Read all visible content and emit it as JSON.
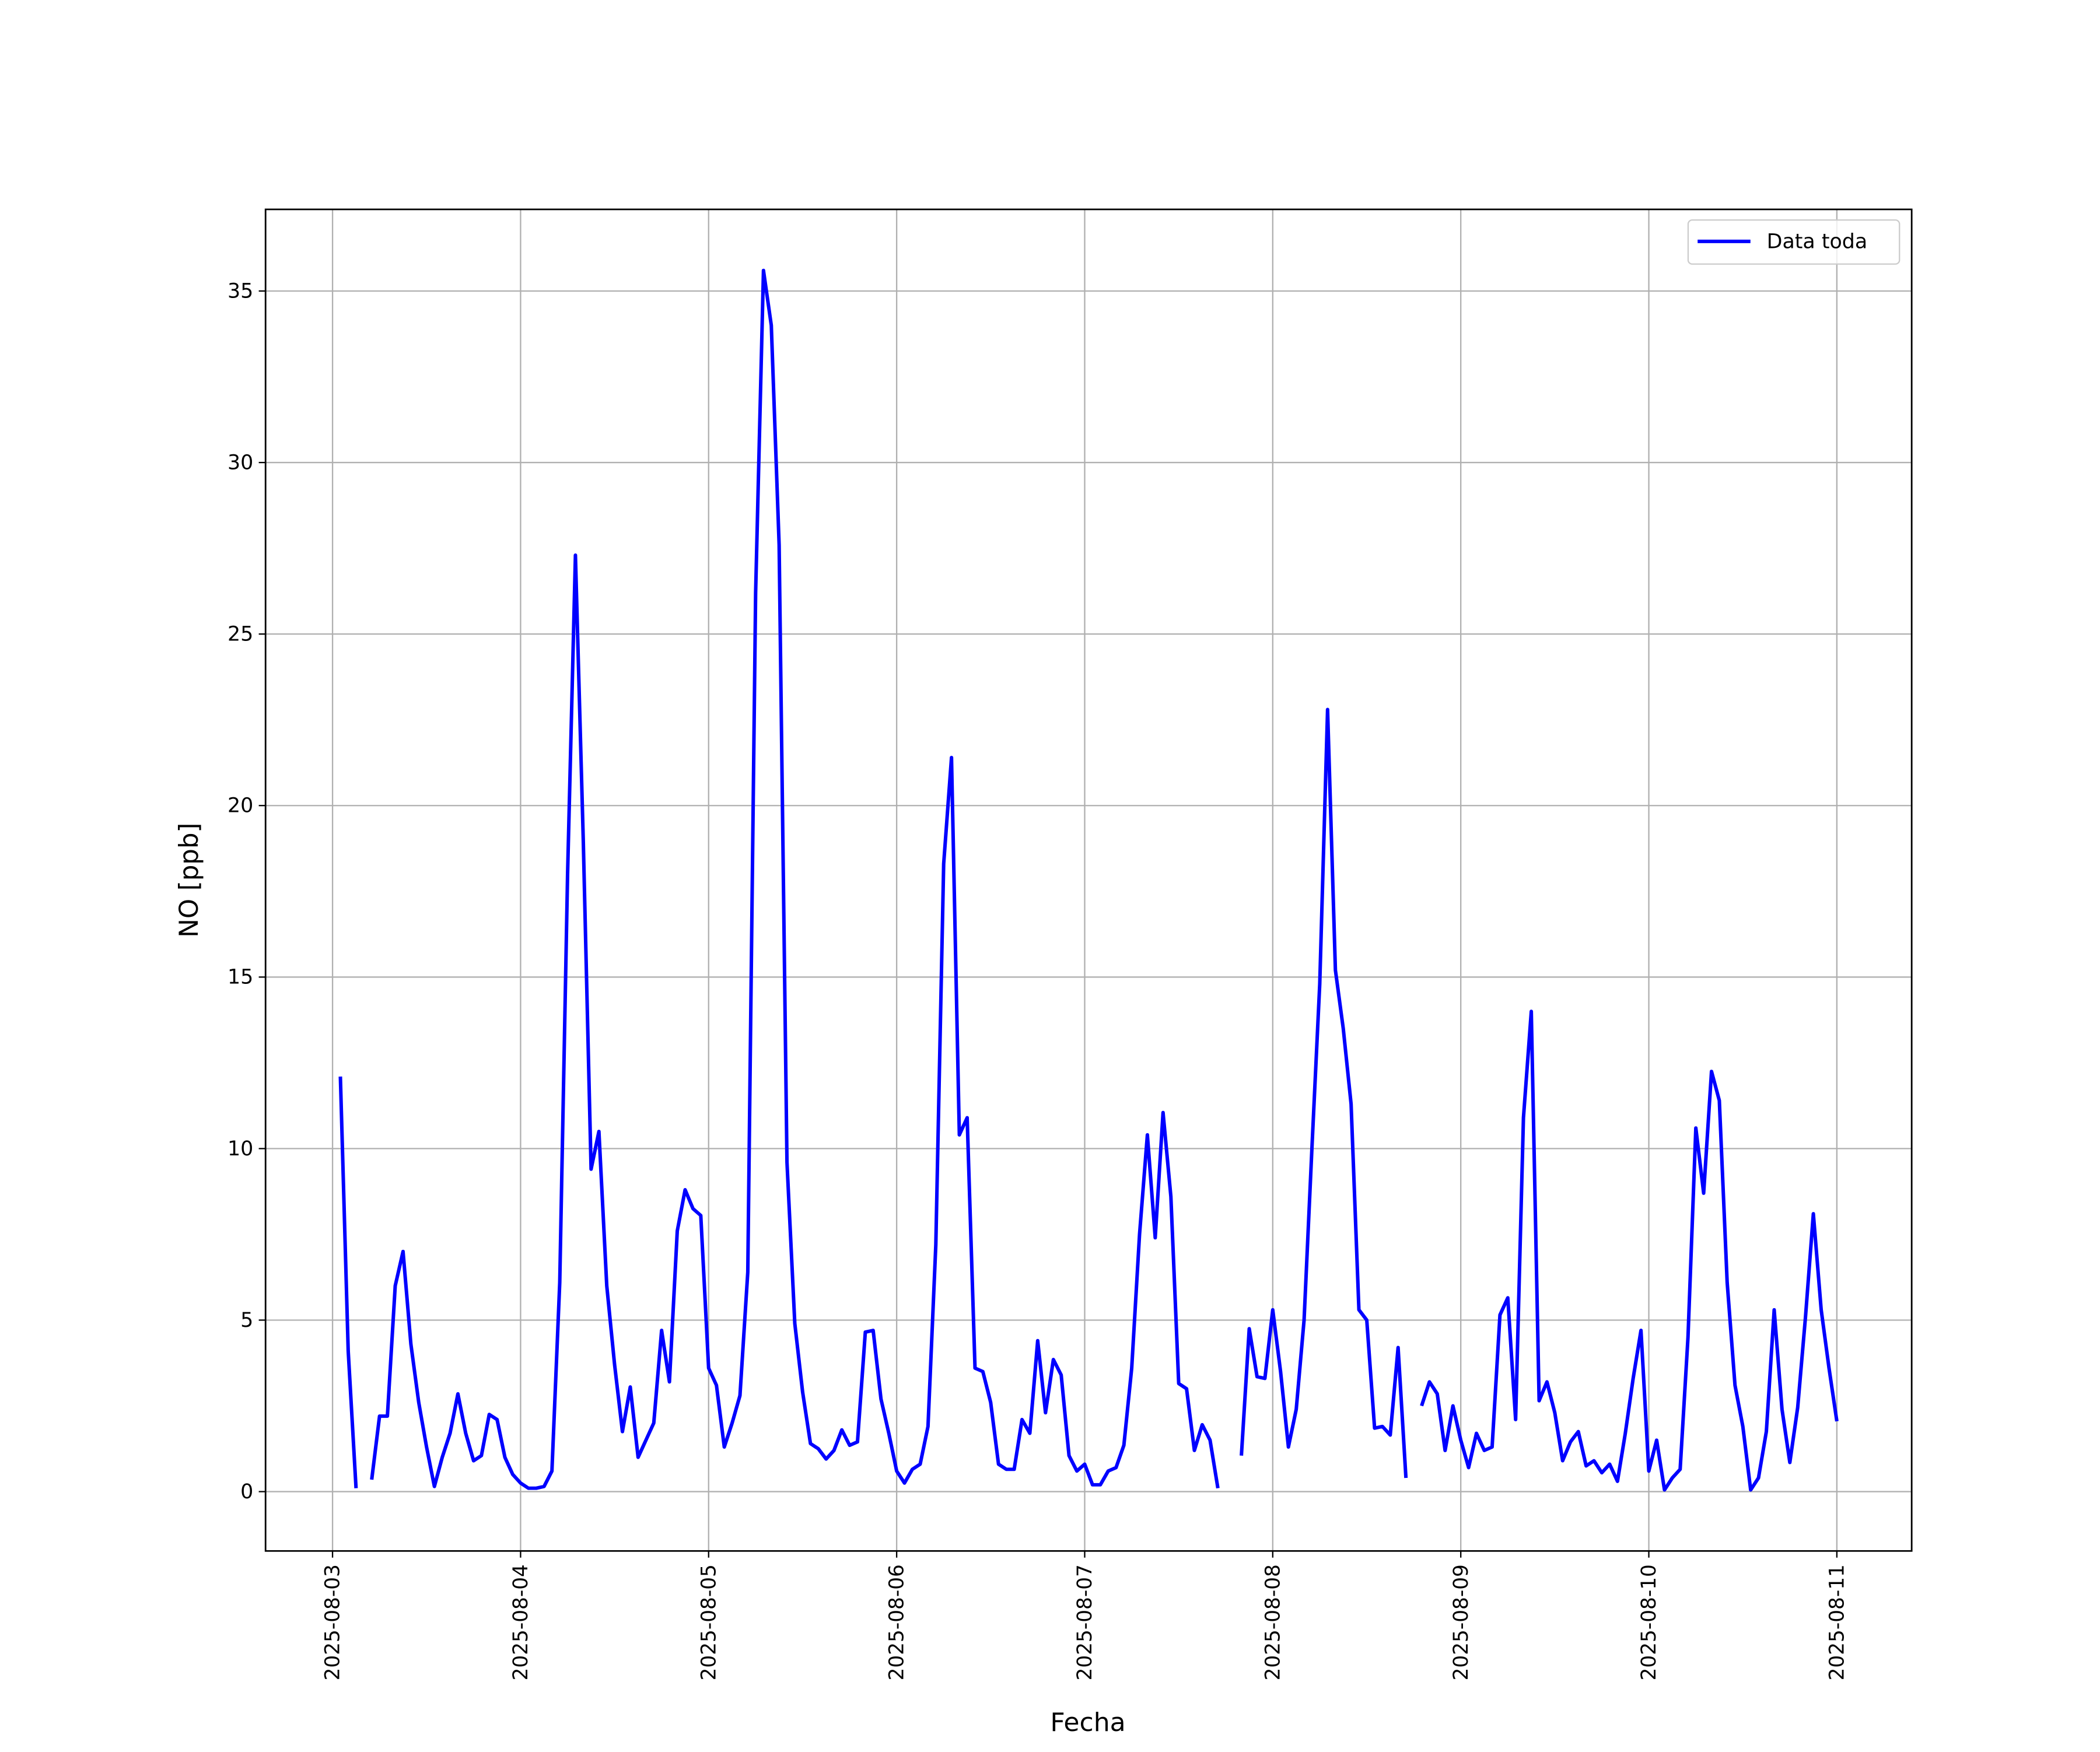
{
  "chart_data": {
    "type": "line",
    "xlabel": "Fecha",
    "ylabel": "NO [ppb]",
    "x": [
      "2025-08-03T01:00",
      "2025-08-03T02:00",
      "2025-08-03T03:00",
      "2025-08-03T04:00",
      "2025-08-03T05:00",
      "2025-08-03T06:00",
      "2025-08-03T07:00",
      "2025-08-03T08:00",
      "2025-08-03T09:00",
      "2025-08-03T10:00",
      "2025-08-03T11:00",
      "2025-08-03T12:00",
      "2025-08-03T13:00",
      "2025-08-03T14:00",
      "2025-08-03T15:00",
      "2025-08-03T16:00",
      "2025-08-03T17:00",
      "2025-08-03T18:00",
      "2025-08-03T19:00",
      "2025-08-03T20:00",
      "2025-08-03T21:00",
      "2025-08-03T22:00",
      "2025-08-03T23:00",
      "2025-08-04T00:00",
      "2025-08-04T01:00",
      "2025-08-04T02:00",
      "2025-08-04T03:00",
      "2025-08-04T04:00",
      "2025-08-04T05:00",
      "2025-08-04T06:00",
      "2025-08-04T07:00",
      "2025-08-04T08:00",
      "2025-08-04T09:00",
      "2025-08-04T10:00",
      "2025-08-04T11:00",
      "2025-08-04T12:00",
      "2025-08-04T13:00",
      "2025-08-04T14:00",
      "2025-08-04T15:00",
      "2025-08-04T16:00",
      "2025-08-04T17:00",
      "2025-08-04T18:00",
      "2025-08-04T19:00",
      "2025-08-04T20:00",
      "2025-08-04T21:00",
      "2025-08-04T22:00",
      "2025-08-04T23:00",
      "2025-08-05T00:00",
      "2025-08-05T01:00",
      "2025-08-05T02:00",
      "2025-08-05T03:00",
      "2025-08-05T04:00",
      "2025-08-05T05:00",
      "2025-08-05T06:00",
      "2025-08-05T07:00",
      "2025-08-05T08:00",
      "2025-08-05T09:00",
      "2025-08-05T10:00",
      "2025-08-05T11:00",
      "2025-08-05T12:00",
      "2025-08-05T13:00",
      "2025-08-05T14:00",
      "2025-08-05T15:00",
      "2025-08-05T16:00",
      "2025-08-05T17:00",
      "2025-08-05T18:00",
      "2025-08-05T19:00",
      "2025-08-05T20:00",
      "2025-08-05T21:00",
      "2025-08-05T22:00",
      "2025-08-05T23:00",
      "2025-08-06T00:00",
      "2025-08-06T01:00",
      "2025-08-06T02:00",
      "2025-08-06T03:00",
      "2025-08-06T04:00",
      "2025-08-06T05:00",
      "2025-08-06T06:00",
      "2025-08-06T07:00",
      "2025-08-06T08:00",
      "2025-08-06T09:00",
      "2025-08-06T10:00",
      "2025-08-06T11:00",
      "2025-08-06T12:00",
      "2025-08-06T13:00",
      "2025-08-06T14:00",
      "2025-08-06T15:00",
      "2025-08-06T16:00",
      "2025-08-06T17:00",
      "2025-08-06T18:00",
      "2025-08-06T19:00",
      "2025-08-06T20:00",
      "2025-08-06T21:00",
      "2025-08-06T22:00",
      "2025-08-06T23:00",
      "2025-08-07T00:00",
      "2025-08-07T01:00",
      "2025-08-07T02:00",
      "2025-08-07T03:00",
      "2025-08-07T04:00",
      "2025-08-07T05:00",
      "2025-08-07T06:00",
      "2025-08-07T07:00",
      "2025-08-07T08:00",
      "2025-08-07T09:00",
      "2025-08-07T10:00",
      "2025-08-07T11:00",
      "2025-08-07T12:00",
      "2025-08-07T13:00",
      "2025-08-07T14:00",
      "2025-08-07T15:00",
      "2025-08-07T16:00",
      "2025-08-07T17:00",
      "2025-08-07T18:00",
      "2025-08-07T19:00",
      "2025-08-07T20:00",
      "2025-08-07T21:00",
      "2025-08-07T22:00",
      "2025-08-07T23:00",
      "2025-08-08T00:00",
      "2025-08-08T01:00",
      "2025-08-08T02:00",
      "2025-08-08T03:00",
      "2025-08-08T04:00",
      "2025-08-08T05:00",
      "2025-08-08T06:00",
      "2025-08-08T07:00",
      "2025-08-08T08:00",
      "2025-08-08T09:00",
      "2025-08-08T10:00",
      "2025-08-08T11:00",
      "2025-08-08T12:00",
      "2025-08-08T13:00",
      "2025-08-08T14:00",
      "2025-08-08T15:00",
      "2025-08-08T16:00",
      "2025-08-08T17:00",
      "2025-08-08T18:00",
      "2025-08-08T19:00",
      "2025-08-08T20:00",
      "2025-08-08T21:00",
      "2025-08-08T22:00",
      "2025-08-08T23:00",
      "2025-08-09T00:00",
      "2025-08-09T01:00",
      "2025-08-09T02:00",
      "2025-08-09T03:00",
      "2025-08-09T04:00",
      "2025-08-09T05:00",
      "2025-08-09T06:00",
      "2025-08-09T07:00",
      "2025-08-09T08:00",
      "2025-08-09T09:00",
      "2025-08-09T10:00",
      "2025-08-09T11:00",
      "2025-08-09T12:00",
      "2025-08-09T13:00",
      "2025-08-09T14:00",
      "2025-08-09T15:00",
      "2025-08-09T16:00",
      "2025-08-09T17:00",
      "2025-08-09T18:00",
      "2025-08-09T19:00",
      "2025-08-09T20:00",
      "2025-08-09T21:00",
      "2025-08-09T22:00",
      "2025-08-09T23:00",
      "2025-08-10T00:00",
      "2025-08-10T01:00",
      "2025-08-10T02:00",
      "2025-08-10T03:00",
      "2025-08-10T04:00",
      "2025-08-10T05:00",
      "2025-08-10T06:00",
      "2025-08-10T07:00",
      "2025-08-10T08:00",
      "2025-08-10T09:00",
      "2025-08-10T10:00",
      "2025-08-10T11:00",
      "2025-08-10T12:00",
      "2025-08-10T13:00",
      "2025-08-10T14:00",
      "2025-08-10T15:00",
      "2025-08-10T16:00",
      "2025-08-10T17:00",
      "2025-08-10T18:00",
      "2025-08-10T19:00",
      "2025-08-10T20:00",
      "2025-08-10T21:00",
      "2025-08-10T22:00",
      "2025-08-10T23:00",
      "2025-08-11T00:00"
    ],
    "series": [
      {
        "name": "Data toda",
        "color": "#0000ff",
        "values": [
          12.1,
          4.1,
          0.1,
          null,
          0.35,
          2.2,
          2.2,
          6.0,
          7.0,
          4.3,
          2.6,
          1.3,
          0.15,
          1.0,
          1.7,
          2.85,
          1.7,
          0.9,
          1.05,
          2.25,
          2.1,
          1.0,
          0.5,
          0.25,
          0.1,
          0.1,
          0.15,
          0.6,
          6.1,
          18,
          27.3,
          19,
          9.4,
          10.5,
          6.0,
          3.7,
          1.75,
          3.05,
          1.0,
          1.5,
          2.0,
          4.7,
          3.2,
          7.6,
          8.8,
          8.25,
          8.05,
          3.6,
          3.1,
          1.3,
          2.0,
          2.8,
          6.4,
          26.2,
          35.6,
          34.0,
          27.6,
          9.6,
          4.9,
          2.9,
          1.4,
          1.25,
          0.95,
          1.2,
          1.8,
          1.35,
          1.45,
          4.65,
          4.7,
          2.7,
          1.7,
          0.6,
          0.25,
          0.65,
          0.8,
          1.9,
          7.2,
          18.3,
          21.4,
          10.4,
          10.9,
          3.6,
          3.5,
          2.6,
          0.8,
          0.65,
          0.65,
          2.1,
          1.7,
          4.4,
          2.3,
          3.85,
          3.4,
          1.05,
          0.6,
          0.8,
          0.2,
          0.2,
          0.6,
          0.7,
          1.35,
          3.6,
          7.5,
          10.4,
          7.4,
          11.05,
          8.6,
          3.15,
          3.0,
          1.2,
          1.95,
          1.5,
          0.1,
          null,
          null,
          1.05,
          4.75,
          3.35,
          3.3,
          5.3,
          3.5,
          1.3,
          2.4,
          5.0,
          10.0,
          14.8,
          22.8,
          15.2,
          13.5,
          11.3,
          5.3,
          5.0,
          1.85,
          1.9,
          1.65,
          4.2,
          0.4,
          null,
          2.5,
          3.2,
          2.85,
          1.2,
          2.5,
          1.5,
          0.7,
          1.7,
          1.2,
          1.3,
          5.15,
          5.65,
          2.1,
          10.9,
          14.0,
          2.65,
          3.2,
          2.3,
          0.9,
          1.45,
          1.75,
          0.75,
          0.9,
          0.55,
          0.8,
          0.3,
          1.7,
          3.3,
          4.7,
          0.6,
          1.5,
          0.05,
          0.4,
          0.65,
          4.5,
          10.6,
          8.7,
          12.25,
          11.4,
          6.1,
          3.1,
          1.9,
          0.05,
          0.4,
          1.75,
          5.3,
          2.4,
          0.85,
          2.45,
          5.1,
          8.1,
          5.3,
          3.6,
          2.05
        ]
      }
    ],
    "xlim": [
      "2025-08-02T15:27",
      "2025-08-11T09:33"
    ],
    "xticks": [
      "2025-08-03",
      "2025-08-04",
      "2025-08-05",
      "2025-08-06",
      "2025-08-07",
      "2025-08-08",
      "2025-08-09",
      "2025-08-10",
      "2025-08-11"
    ],
    "ylim": [
      -1.73,
      37.38
    ],
    "yticks": [
      0,
      5,
      10,
      15,
      20,
      25,
      30,
      35
    ],
    "grid": true,
    "legend": "upper right"
  }
}
